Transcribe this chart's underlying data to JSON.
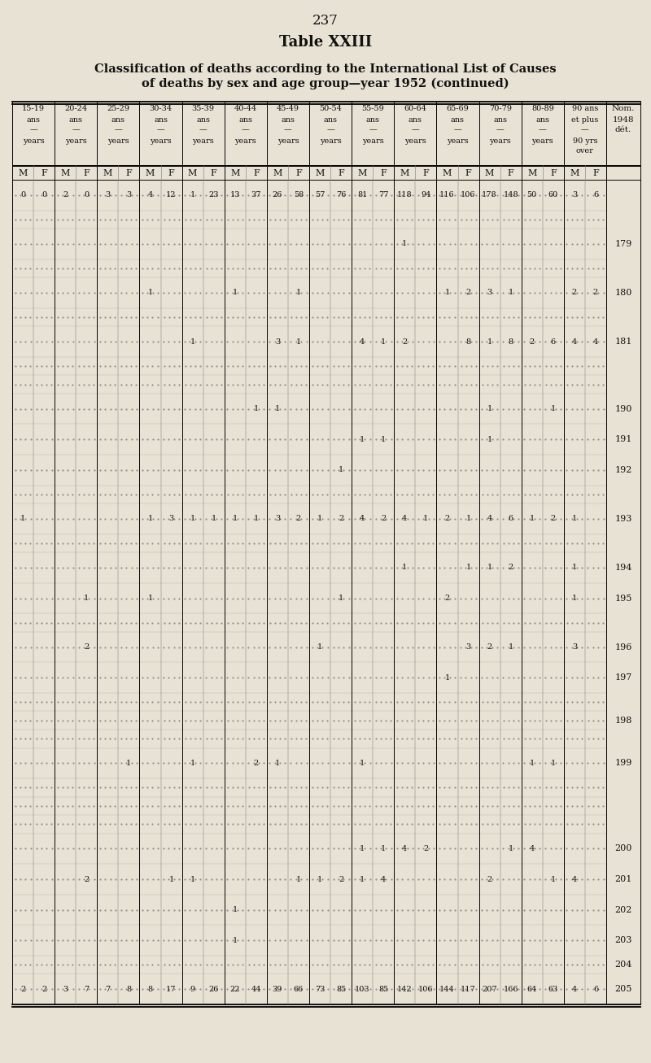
{
  "page_number": "237",
  "table_title": "Table XXIII",
  "subtitle_line1": "Classification of deaths according to the International List of Causes",
  "subtitle_line2": "of deaths by sex and age group—year 1952 (continued)",
  "bg_color": "#e8e2d4",
  "rows": [
    {
      "nom": null,
      "vals": [
        "0",
        "0",
        "2",
        "0",
        "3",
        "3",
        "4",
        "12",
        "1",
        "23",
        "13",
        "37",
        "26",
        "58",
        "57",
        "76",
        "81",
        "77",
        "118",
        "94",
        "116",
        "106",
        "178",
        "148",
        "50",
        "60",
        "3",
        "6"
      ]
    },
    {
      "nom": null,
      "vals": null
    },
    {
      "nom": "179",
      "vals": [
        "",
        "",
        "",
        "",
        "",
        "",
        "",
        "",
        "",
        "",
        "",
        "",
        "",
        "",
        "",
        "",
        "",
        "",
        "1",
        "",
        "",
        "",
        "",
        "",
        "",
        "",
        "",
        ""
      ]
    },
    {
      "nom": null,
      "vals": null
    },
    {
      "nom": "180",
      "vals": [
        "",
        "",
        "",
        "",
        "",
        "",
        "1",
        "",
        "",
        "",
        "1",
        "",
        "",
        "1",
        "",
        "",
        "",
        "",
        "",
        "",
        "1",
        "2",
        "3",
        "1",
        "",
        "",
        "2",
        "2"
      ]
    },
    {
      "nom": null,
      "vals": null
    },
    {
      "nom": "181",
      "vals": [
        "",
        "",
        "",
        "",
        "",
        "",
        "",
        "",
        "1",
        "",
        "",
        "",
        "3",
        "1",
        "",
        "",
        "4",
        "1",
        "2",
        "",
        "",
        "8",
        "1",
        "8",
        "2",
        "6",
        "4",
        "4"
      ]
    },
    {
      "nom": null,
      "vals": null
    },
    {
      "nom": null,
      "vals": null
    },
    {
      "nom": "190",
      "vals": [
        "",
        "",
        "",
        "",
        "",
        "",
        "",
        "",
        "",
        "",
        "",
        "1",
        "1",
        "",
        "",
        "",
        "",
        "",
        "",
        "",
        "",
        "",
        "1",
        "",
        "",
        "1",
        "",
        ""
      ]
    },
    {
      "nom": "191",
      "vals": [
        "",
        "",
        "",
        "",
        "",
        "",
        "",
        "",
        "",
        "",
        "",
        "",
        "",
        "",
        "",
        "",
        "1",
        "1",
        "",
        "",
        "",
        "",
        "1",
        "",
        "",
        "",
        "",
        ""
      ]
    },
    {
      "nom": "192",
      "vals": [
        "",
        "",
        "",
        "",
        "",
        "",
        "",
        "",
        "",
        "",
        "",
        "",
        "",
        "",
        "",
        "1",
        "",
        "",
        "",
        "",
        "",
        "",
        "",
        "",
        "",
        "",
        "",
        ""
      ]
    },
    {
      "nom": null,
      "vals": null
    },
    {
      "nom": "193",
      "vals": [
        "1",
        "",
        "",
        "",
        "",
        "",
        "1",
        "3",
        "1",
        "1",
        "1",
        "1",
        "3",
        "2",
        "1",
        "2",
        "4",
        "2",
        "4",
        "1",
        "2",
        "1",
        "4",
        "6",
        "1",
        "2",
        "1",
        ""
      ]
    },
    {
      "nom": null,
      "vals": null
    },
    {
      "nom": "194",
      "vals": [
        "",
        "",
        "",
        "",
        "",
        "",
        "",
        "",
        "",
        "",
        "",
        "",
        "",
        "",
        "",
        "",
        "",
        "",
        "1",
        "",
        "",
        "1",
        "1",
        "2",
        "",
        "",
        "1",
        ""
      ]
    },
    {
      "nom": "195",
      "vals": [
        "",
        "",
        "",
        "1",
        "",
        "",
        "1",
        "",
        "",
        "",
        "",
        "",
        "",
        "",
        "",
        "1",
        "",
        "",
        "",
        "",
        "2",
        "",
        "",
        "",
        "",
        "",
        "1",
        ""
      ]
    },
    {
      "nom": null,
      "vals": null
    },
    {
      "nom": "196",
      "vals": [
        "",
        "",
        "",
        "2",
        "",
        "",
        "",
        "",
        "",
        "",
        "",
        "",
        "",
        "",
        "1",
        "",
        "",
        "",
        "",
        "",
        "",
        "3",
        "2",
        "1",
        "",
        "",
        "3",
        ""
      ]
    },
    {
      "nom": "197",
      "vals": [
        "",
        "",
        "",
        "",
        "",
        "",
        "",
        "",
        "",
        "",
        "",
        "",
        "",
        "",
        "",
        "",
        "",
        "",
        "",
        "",
        "1",
        "",
        "",
        "",
        "",
        "",
        "",
        ""
      ]
    },
    {
      "nom": null,
      "vals": null
    },
    {
      "nom": "198",
      "vals": null
    },
    {
      "nom": null,
      "vals": null
    },
    {
      "nom": "199",
      "vals": [
        "",
        "",
        "",
        "",
        "",
        "1",
        "",
        "",
        "1",
        "",
        "",
        "2",
        "1",
        "",
        "",
        "",
        "1",
        "",
        "",
        "",
        "",
        "",
        "",
        "",
        "1",
        "1",
        "",
        ""
      ]
    },
    {
      "nom": null,
      "vals": null
    },
    {
      "nom": null,
      "vals": null
    },
    {
      "nom": null,
      "vals": null
    },
    {
      "nom": "200",
      "vals": [
        "",
        "",
        "",
        "",
        "",
        "",
        "",
        "",
        "",
        "",
        "",
        "",
        "",
        "",
        "",
        "",
        "1",
        "1",
        "4",
        "2",
        "",
        "",
        "",
        "1",
        "4",
        "",
        "",
        ""
      ]
    },
    {
      "nom": "201",
      "vals": [
        "",
        "",
        "",
        "2",
        "",
        "",
        "",
        "1",
        "1",
        "",
        "",
        "",
        "",
        "1",
        "1",
        "2",
        "1",
        "4",
        "",
        "",
        "",
        "",
        "2",
        "",
        "",
        "1",
        "4",
        ""
      ]
    },
    {
      "nom": "202",
      "vals": [
        "",
        "",
        "",
        "",
        "",
        "",
        "",
        "",
        "",
        "",
        "1",
        "",
        "",
        "",
        "",
        "",
        "",
        "",
        "",
        "",
        "",
        "",
        "",
        "",
        "",
        "",
        "",
        ""
      ]
    },
    {
      "nom": "203",
      "vals": [
        "",
        "",
        "",
        "",
        "",
        "",
        "",
        "",
        "",
        "",
        "1",
        "",
        "",
        "",
        "",
        "",
        "",
        "",
        "",
        "",
        "",
        "",
        "",
        "",
        "",
        "",
        "",
        ""
      ]
    },
    {
      "nom": "204",
      "vals": null
    },
    {
      "nom": "205",
      "vals": [
        "2",
        "2",
        "3",
        "7",
        "7",
        "8",
        "8",
        "17",
        "9",
        "26",
        "22",
        "44",
        "39",
        "66",
        "73",
        "85",
        "103",
        "85",
        "142",
        "106",
        "144",
        "117",
        "207",
        "166",
        "64",
        "63",
        "4",
        "6"
      ]
    }
  ]
}
